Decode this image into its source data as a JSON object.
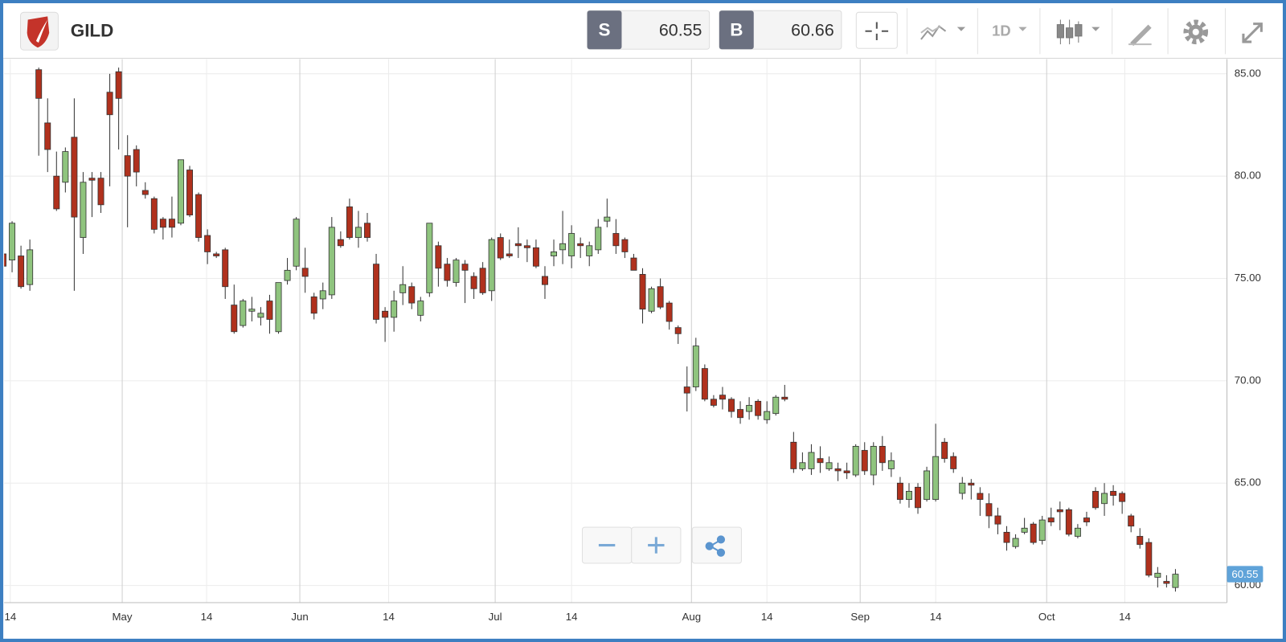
{
  "toolbar": {
    "sell_label": "S",
    "sell_price": "60.55",
    "buy_label": "B",
    "buy_price": "60.66",
    "interval": "1D"
  },
  "chart_data": {
    "type": "candlestick",
    "title": "GILD",
    "up_color": "#8fc47e",
    "down_color": "#b0311d",
    "grid": true,
    "xlim": [
      0.1,
      137.8
    ],
    "xticks": [
      {
        "value": 0.8,
        "label": "14"
      },
      {
        "value": 13.4,
        "label": "May"
      },
      {
        "value": 22.9,
        "label": "14"
      },
      {
        "value": 33.4,
        "label": "Jun"
      },
      {
        "value": 43.4,
        "label": "14"
      },
      {
        "value": 55.4,
        "label": "Jul"
      },
      {
        "value": 64,
        "label": "14"
      },
      {
        "value": 77.5,
        "label": "Aug"
      },
      {
        "value": 86,
        "label": "14"
      },
      {
        "value": 96.5,
        "label": "Sep"
      },
      {
        "value": 105,
        "label": "14"
      },
      {
        "value": 117.5,
        "label": "Oct"
      },
      {
        "value": 126.3,
        "label": "14"
      }
    ],
    "ylim": [
      59.16,
      85.72
    ],
    "yticks": [
      {
        "value": 60,
        "label": "60.00"
      },
      {
        "value": 65,
        "label": "65.00"
      },
      {
        "value": 70,
        "label": "70.00"
      },
      {
        "value": 75,
        "label": "75.00"
      },
      {
        "value": 80,
        "label": "80.00"
      },
      {
        "value": 85,
        "label": "85.00"
      }
    ],
    "open": [
      76.2,
      75.9,
      76.1,
      74.7,
      85.2,
      82.6,
      80.0,
      79.7,
      81.9,
      77.0,
      79.9,
      79.9,
      84.1,
      85.1,
      81.0,
      81.3,
      79.3,
      78.9,
      77.9,
      77.9,
      77.7,
      80.3,
      79.1,
      77.1,
      76.2,
      76.4,
      73.7,
      72.7,
      73.4,
      73.1,
      73.9,
      72.4,
      74.9,
      75.6,
      75.5,
      74.1,
      74.0,
      74.2,
      76.9,
      78.5,
      77.0,
      77.7,
      75.7,
      73.4,
      73.1,
      74.3,
      74.6,
      73.2,
      74.3,
      76.6,
      75.7,
      74.8,
      75.7,
      75.1,
      75.5,
      74.4,
      77.0,
      76.2,
      76.7,
      76.6,
      76.5,
      75.1,
      76.1,
      76.4,
      76.1,
      76.7,
      76.1,
      76.4,
      77.8,
      77.2,
      76.9,
      76.0,
      75.2,
      73.4,
      74.6,
      73.8,
      72.6,
      69.7,
      69.7,
      70.6,
      69.1,
      69.3,
      69.1,
      68.6,
      68.5,
      69.0,
      68.1,
      68.4,
      69.2,
      67.0,
      65.7,
      65.7,
      66.2,
      65.7,
      65.7,
      65.6,
      65.4,
      66.6,
      65.4,
      66.8,
      65.7,
      65.0,
      64.2,
      64.8,
      64.2,
      64.2,
      67.0,
      66.3,
      64.5,
      65.0,
      64.5,
      64.0,
      63.4,
      62.6,
      61.9,
      62.6,
      63.0,
      62.2,
      63.3,
      63.7,
      63.7,
      62.4,
      63.3,
      64.6,
      64.0,
      64.6,
      64.5,
      63.4,
      62.4,
      62.1,
      60.4,
      60.2,
      59.9
    ],
    "high": [
      76.3,
      77.8,
      76.6,
      76.9,
      85.3,
      83.8,
      81.2,
      81.4,
      83.8,
      80.2,
      80.2,
      80.2,
      85.0,
      85.3,
      82.0,
      81.5,
      79.7,
      79.0,
      78.0,
      79.0,
      80.8,
      80.5,
      79.2,
      77.4,
      76.3,
      76.5,
      74.7,
      74.0,
      74.1,
      73.6,
      74.2,
      74.8,
      76.0,
      78.0,
      76.5,
      74.3,
      74.8,
      78.0,
      77.3,
      78.9,
      78.3,
      78.2,
      76.2,
      73.6,
      74.4,
      75.6,
      74.8,
      74.1,
      77.7,
      76.8,
      76.0,
      76.0,
      75.9,
      75.3,
      75.8,
      77.0,
      77.2,
      76.9,
      77.5,
      76.9,
      76.9,
      75.6,
      76.9,
      78.3,
      77.6,
      77.0,
      76.8,
      77.9,
      78.9,
      77.9,
      77.0,
      76.2,
      75.5,
      74.6,
      75.0,
      73.9,
      72.7,
      70.7,
      72.1,
      70.8,
      69.3,
      69.7,
      69.2,
      69.0,
      69.2,
      69.1,
      69.0,
      69.3,
      69.8,
      67.5,
      66.5,
      66.9,
      66.8,
      66.3,
      66.0,
      66.0,
      66.9,
      67.0,
      67.0,
      67.3,
      66.5,
      65.3,
      65.0,
      65.0,
      65.8,
      67.9,
      67.2,
      66.5,
      65.3,
      65.2,
      64.8,
      64.5,
      63.8,
      62.9,
      62.5,
      63.3,
      63.1,
      63.4,
      63.8,
      64.1,
      63.8,
      63.0,
      63.6,
      64.8,
      65.0,
      64.9,
      64.6,
      63.5,
      62.8,
      62.3,
      60.9,
      60.5,
      60.8
    ],
    "low": [
      75.5,
      75.3,
      74.5,
      74.4,
      81.0,
      80.2,
      78.3,
      79.2,
      74.4,
      76.2,
      78.0,
      78.2,
      79.5,
      81.3,
      77.5,
      79.5,
      78.9,
      77.2,
      76.9,
      77.0,
      77.6,
      78.0,
      76.8,
      75.7,
      76.0,
      74.0,
      72.3,
      72.6,
      72.9,
      72.7,
      72.3,
      72.3,
      74.7,
      75.4,
      74.3,
      73.0,
      73.5,
      74.0,
      76.5,
      76.9,
      76.5,
      76.8,
      72.8,
      71.9,
      72.4,
      73.7,
      73.5,
      72.9,
      74.1,
      74.6,
      74.6,
      74.6,
      73.8,
      74.0,
      74.2,
      73.9,
      75.9,
      76.0,
      76.0,
      75.8,
      75.5,
      74.0,
      75.6,
      75.7,
      75.5,
      76.0,
      75.6,
      76.2,
      77.5,
      76.2,
      76.0,
      75.4,
      72.8,
      73.3,
      73.5,
      72.5,
      71.8,
      68.5,
      69.5,
      69.0,
      68.7,
      68.6,
      68.2,
      67.9,
      68.1,
      68.1,
      67.9,
      68.3,
      69.0,
      65.5,
      65.6,
      65.4,
      65.5,
      65.6,
      65.1,
      65.2,
      65.3,
      65.4,
      64.9,
      65.6,
      65.3,
      64.0,
      63.8,
      63.5,
      64.1,
      64.1,
      66.0,
      65.5,
      64.2,
      64.2,
      63.4,
      62.8,
      62.5,
      61.7,
      61.8,
      62.5,
      62.0,
      62.0,
      62.9,
      62.7,
      62.4,
      62.3,
      62.9,
      63.7,
      63.4,
      63.9,
      63.5,
      62.6,
      61.8,
      60.4,
      59.9,
      59.9,
      59.7
    ],
    "close": [
      75.6,
      77.7,
      74.6,
      76.4,
      83.8,
      81.3,
      78.4,
      81.2,
      78.0,
      79.7,
      79.8,
      78.6,
      83.0,
      83.8,
      80.0,
      80.2,
      79.1,
      77.4,
      77.5,
      77.5,
      80.8,
      78.1,
      77.0,
      76.3,
      76.1,
      74.6,
      72.4,
      73.9,
      73.5,
      73.3,
      73.0,
      74.8,
      75.4,
      77.9,
      75.1,
      73.3,
      74.4,
      77.5,
      76.6,
      77.0,
      77.5,
      77.0,
      73.0,
      73.1,
      73.9,
      74.7,
      73.8,
      73.9,
      77.7,
      75.5,
      74.9,
      75.9,
      75.4,
      74.5,
      74.3,
      76.9,
      76.0,
      76.1,
      76.6,
      76.5,
      75.6,
      74.7,
      76.3,
      76.7,
      77.2,
      76.6,
      76.6,
      77.5,
      78.0,
      76.6,
      76.3,
      75.4,
      73.5,
      74.5,
      73.6,
      72.9,
      72.3,
      69.4,
      71.7,
      69.1,
      68.8,
      69.1,
      68.5,
      68.2,
      68.8,
      68.3,
      68.5,
      69.2,
      69.1,
      65.7,
      66.0,
      66.5,
      66.0,
      66.0,
      65.6,
      65.5,
      66.8,
      65.6,
      66.8,
      66.0,
      66.1,
      64.2,
      64.6,
      63.8,
      65.6,
      66.3,
      66.2,
      65.7,
      65.0,
      64.9,
      64.2,
      63.4,
      63.0,
      62.1,
      62.3,
      62.8,
      62.1,
      63.2,
      63.1,
      63.6,
      62.5,
      62.8,
      63.1,
      63.8,
      64.5,
      64.4,
      64.1,
      62.9,
      62.0,
      60.5,
      60.6,
      60.1,
      60.55
    ]
  }
}
